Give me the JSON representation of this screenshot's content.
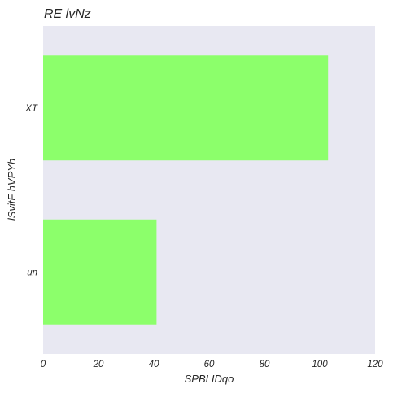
{
  "chart_data": {
    "type": "bar",
    "orientation": "horizontal",
    "title": "RE lvNz",
    "xlabel": "SPBLIDqo",
    "ylabel": "lSvitF hVPYh",
    "categories": [
      "XT",
      "un"
    ],
    "values": [
      103,
      41
    ],
    "xlim": [
      0,
      120
    ],
    "xticks": [
      0,
      20,
      40,
      60,
      80,
      100,
      120
    ],
    "grid": false,
    "colors": {
      "bar": "#8cff6b",
      "plot_background": "#e8e8f2",
      "text": "#262626"
    }
  }
}
